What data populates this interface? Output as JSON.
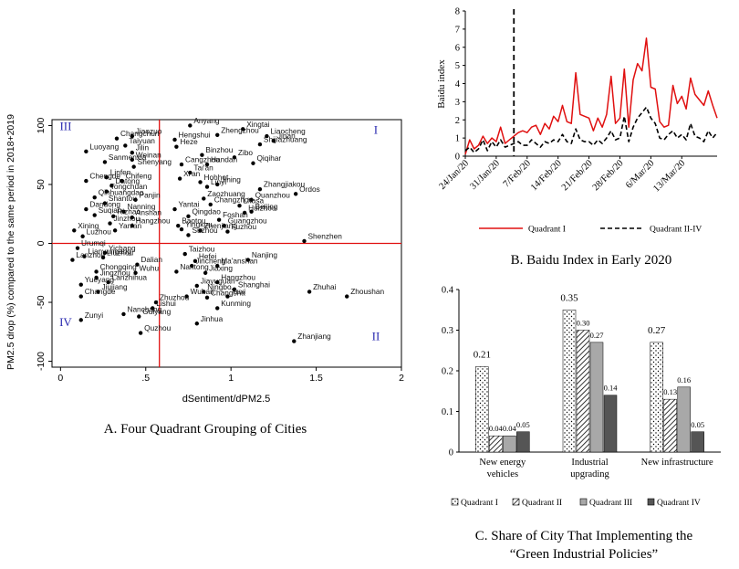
{
  "chart_data": [
    {
      "type": "scatter",
      "caption": "A. Four Quadrant Grouping of Cities",
      "xlabel": "dSentiment/dPM2.5",
      "ylabel": "PM2.5 drop (%) compared to the same period in 2018+2019",
      "xlim": [
        -0.05,
        2.0
      ],
      "ylim": [
        -105,
        105
      ],
      "xticks": [
        {
          "v": 0,
          "t": "0"
        },
        {
          "v": 0.5,
          "t": ".5"
        },
        {
          "v": 1,
          "t": "1"
        },
        {
          "v": 1.5,
          "t": "1.5"
        },
        {
          "v": 2,
          "t": "2"
        }
      ],
      "yticks": [
        {
          "v": 100,
          "t": "100"
        },
        {
          "v": 50,
          "t": "50"
        },
        {
          "v": 0,
          "t": "0"
        },
        {
          "v": -50,
          "t": "-50"
        },
        {
          "v": -100,
          "t": "-100"
        }
      ],
      "ref_lines": {
        "x": 0.58,
        "y": 0
      },
      "quadrant_labels": [
        {
          "text": "I",
          "x": 1.85,
          "y": 93
        },
        {
          "text": "II",
          "x": 1.85,
          "y": -82
        },
        {
          "text": "III",
          "x": 0.03,
          "y": 96
        },
        {
          "text": "IV",
          "x": 0.03,
          "y": -70
        }
      ],
      "points": [
        {
          "x": 0.76,
          "y": 100,
          "label": "Anyang"
        },
        {
          "x": 1.07,
          "y": 97,
          "label": "Xingtai"
        },
        {
          "x": 0.42,
          "y": 91,
          "label": "Jiaozuo"
        },
        {
          "x": 0.92,
          "y": 92,
          "label": "Zhengzhou"
        },
        {
          "x": 1.21,
          "y": 91,
          "label": "Liaocheng"
        },
        {
          "x": 0.33,
          "y": 89,
          "label": "Changchun"
        },
        {
          "x": 0.67,
          "y": 88,
          "label": "Hengshui"
        },
        {
          "x": 1.25,
          "y": 87,
          "label": "Jinan"
        },
        {
          "x": 0.38,
          "y": 83,
          "label": "Taiyuan"
        },
        {
          "x": 0.68,
          "y": 82,
          "label": "Heze"
        },
        {
          "x": 1.17,
          "y": 84,
          "label": "Shijiazhuang"
        },
        {
          "x": 0.15,
          "y": 78,
          "label": "Luoyang"
        },
        {
          "x": 0.42,
          "y": 77,
          "label": "Jilin"
        },
        {
          "x": 0.83,
          "y": 75,
          "label": "Binzhou"
        },
        {
          "x": 1.02,
          "y": 73,
          "label": "Zibo"
        },
        {
          "x": 0.26,
          "y": 69,
          "label": "Sanmenxia"
        },
        {
          "x": 0.42,
          "y": 71,
          "label": "Weinan"
        },
        {
          "x": 0.71,
          "y": 67,
          "label": "Cangzhou"
        },
        {
          "x": 0.86,
          "y": 67,
          "label": "Handan"
        },
        {
          "x": 1.13,
          "y": 68,
          "label": "Qiqihar"
        },
        {
          "x": 0.43,
          "y": 65,
          "label": "Shenyang"
        },
        {
          "x": 0.76,
          "y": 60,
          "label": "Tai'an"
        },
        {
          "x": 0.27,
          "y": 56,
          "label": "Linfen"
        },
        {
          "x": 0.7,
          "y": 55,
          "label": "Xi'an"
        },
        {
          "x": 0.15,
          "y": 53,
          "label": "Chengde"
        },
        {
          "x": 0.36,
          "y": 53,
          "label": "Chifeng"
        },
        {
          "x": 0.82,
          "y": 52,
          "label": "Hohhot"
        },
        {
          "x": 0.3,
          "y": 49,
          "label": "Datong"
        },
        {
          "x": 0.86,
          "y": 48,
          "label": "Linyi"
        },
        {
          "x": 0.92,
          "y": 50,
          "label": "Jining"
        },
        {
          "x": 1.17,
          "y": 46,
          "label": "Zhangjiakou"
        },
        {
          "x": 0.27,
          "y": 44,
          "label": "Tongchuan"
        },
        {
          "x": 1.38,
          "y": 42,
          "label": "Ordos"
        },
        {
          "x": 0.2,
          "y": 39,
          "label": "Qinhuangdao"
        },
        {
          "x": 0.44,
          "y": 37,
          "label": "Panjin"
        },
        {
          "x": 0.84,
          "y": 38,
          "label": "Zaozhuang"
        },
        {
          "x": 1.12,
          "y": 37,
          "label": "Quanzhou"
        },
        {
          "x": 0.26,
          "y": 34,
          "label": "Shantou"
        },
        {
          "x": 0.88,
          "y": 33,
          "label": "Changzhou"
        },
        {
          "x": 1.05,
          "y": 32,
          "label": "Lhasa"
        },
        {
          "x": 0.15,
          "y": 29,
          "label": "Dandong"
        },
        {
          "x": 0.37,
          "y": 27,
          "label": "Nanning"
        },
        {
          "x": 0.67,
          "y": 29,
          "label": "Yantai"
        },
        {
          "x": 1.08,
          "y": 26,
          "label": "Huizhou"
        },
        {
          "x": 1.12,
          "y": 27,
          "label": "Beijing"
        },
        {
          "x": 0.2,
          "y": 24,
          "label": "Suqian"
        },
        {
          "x": 0.31,
          "y": 23,
          "label": "Rizhao"
        },
        {
          "x": 0.42,
          "y": 22,
          "label": "Anshan"
        },
        {
          "x": 0.75,
          "y": 23,
          "label": "Qingdao"
        },
        {
          "x": 0.93,
          "y": 20,
          "label": "Foshan"
        },
        {
          "x": 0.29,
          "y": 17,
          "label": "Jinzhou"
        },
        {
          "x": 0.42,
          "y": 15,
          "label": "Hangzhou"
        },
        {
          "x": 0.69,
          "y": 15,
          "label": "Baotou"
        },
        {
          "x": 0.96,
          "y": 15,
          "label": "Guangzhou"
        },
        {
          "x": 0.08,
          "y": 11,
          "label": "Xining"
        },
        {
          "x": 0.32,
          "y": 11,
          "label": "Yan'an"
        },
        {
          "x": 0.71,
          "y": 12,
          "label": "Yingkou"
        },
        {
          "x": 0.82,
          "y": 11,
          "label": "Zhenjiang"
        },
        {
          "x": 0.98,
          "y": 10,
          "label": "Fuzhou"
        },
        {
          "x": 0.13,
          "y": 6,
          "label": "Luzhou"
        },
        {
          "x": 0.75,
          "y": 7,
          "label": "Suzhou"
        },
        {
          "x": 1.43,
          "y": 2,
          "label": "Shenzhen"
        },
        {
          "x": 0.1,
          "y": -4,
          "label": "Urumqi"
        },
        {
          "x": 0.26,
          "y": -8,
          "label": "Yichang"
        },
        {
          "x": 0.73,
          "y": -9,
          "label": "Taizhou"
        },
        {
          "x": 0.14,
          "y": -11,
          "label": "Lianyungang"
        },
        {
          "x": 1.1,
          "y": -14,
          "label": "Nanjing"
        },
        {
          "x": 0.07,
          "y": -14,
          "label": "Lanzhou"
        },
        {
          "x": 0.25,
          "y": -12,
          "label": "Liuzhou"
        },
        {
          "x": 0.79,
          "y": -15,
          "label": "Hefei"
        },
        {
          "x": 0.45,
          "y": -18,
          "label": "Dalian"
        },
        {
          "x": 0.77,
          "y": -19,
          "label": "Jincheng"
        },
        {
          "x": 0.92,
          "y": -19,
          "label": "Ma'anshan"
        },
        {
          "x": 0.21,
          "y": -24,
          "label": "Chongqing"
        },
        {
          "x": 0.44,
          "y": -25,
          "label": "Wuhu"
        },
        {
          "x": 0.68,
          "y": -24,
          "label": "Nantong"
        },
        {
          "x": 0.85,
          "y": -25,
          "label": "Jiaxing"
        },
        {
          "x": 0.21,
          "y": -29,
          "label": "Jingzhou"
        },
        {
          "x": 0.28,
          "y": -33,
          "label": "Lanzhihua"
        },
        {
          "x": 0.12,
          "y": -35,
          "label": "Yueyang"
        },
        {
          "x": 0.8,
          "y": -36,
          "label": "Jiayuguan"
        },
        {
          "x": 0.92,
          "y": -33,
          "label": "Hangzhou"
        },
        {
          "x": 1.02,
          "y": -39,
          "label": "Shanghai"
        },
        {
          "x": 0.22,
          "y": -41,
          "label": "Jiujiang"
        },
        {
          "x": 0.84,
          "y": -41,
          "label": "Ningbo"
        },
        {
          "x": 1.46,
          "y": -41,
          "label": "Zhuhai"
        },
        {
          "x": 0.12,
          "y": -45,
          "label": "Changde"
        },
        {
          "x": 0.98,
          "y": -45,
          "label": "Yuxi"
        },
        {
          "x": 1.68,
          "y": -45,
          "label": "Zhoushan"
        },
        {
          "x": 0.74,
          "y": -45,
          "label": "Wuhan"
        },
        {
          "x": 0.86,
          "y": -46,
          "label": "Changsha"
        },
        {
          "x": 0.56,
          "y": -50,
          "label": "Zhuzhou"
        },
        {
          "x": 0.54,
          "y": -55,
          "label": "Lishui"
        },
        {
          "x": 0.92,
          "y": -55,
          "label": "Kunming"
        },
        {
          "x": 0.37,
          "y": -60,
          "label": "Nanchang"
        },
        {
          "x": 0.46,
          "y": -62,
          "label": "Guiyang"
        },
        {
          "x": 0.12,
          "y": -65,
          "label": "Zunyi"
        },
        {
          "x": 0.8,
          "y": -68,
          "label": "Jinhua"
        },
        {
          "x": 0.47,
          "y": -76,
          "label": "Quzhou"
        },
        {
          "x": 1.37,
          "y": -83,
          "label": "Zhanjiang"
        }
      ]
    },
    {
      "type": "line",
      "caption": "B. Baidu Index in Early 2020",
      "ylabel": "Baidu index",
      "ylim": [
        0,
        8
      ],
      "yticks": [
        "0",
        "1",
        "2",
        "3",
        "4",
        "5",
        "6",
        "7",
        "8"
      ],
      "date_ticks": [
        {
          "i": 0,
          "t": "24/Jan/20"
        },
        {
          "i": 7,
          "t": "31/Jan/20"
        },
        {
          "i": 14,
          "t": "7/Feb/20"
        },
        {
          "i": 21,
          "t": "14/Feb/20"
        },
        {
          "i": 28,
          "t": "21/Feb/20"
        },
        {
          "i": 35,
          "t": "28/Feb/20"
        },
        {
          "i": 42,
          "t": "6/Mar/20"
        },
        {
          "i": 49,
          "t": "13/Mar/20"
        }
      ],
      "dates": [
        "24/Jan/20",
        "25/Jan/20",
        "26/Jan/20",
        "27/Jan/20",
        "28/Jan/20",
        "29/Jan/20",
        "30/Jan/20",
        "31/Jan/20",
        "1/Feb/20",
        "2/Feb/20",
        "3/Feb/20",
        "4/Feb/20",
        "5/Feb/20",
        "6/Feb/20",
        "7/Feb/20",
        "8/Feb/20",
        "9/Feb/20",
        "10/Feb/20",
        "11/Feb/20",
        "12/Feb/20",
        "13/Feb/20",
        "14/Feb/20",
        "15/Feb/20",
        "16/Feb/20",
        "17/Feb/20",
        "18/Feb/20",
        "19/Feb/20",
        "20/Feb/20",
        "21/Feb/20",
        "22/Feb/20",
        "23/Feb/20",
        "24/Feb/20",
        "25/Feb/20",
        "26/Feb/20",
        "27/Feb/20",
        "28/Feb/20",
        "29/Feb/20",
        "1/Mar/20",
        "2/Mar/20",
        "3/Mar/20",
        "4/Mar/20",
        "5/Mar/20",
        "6/Mar/20",
        "7/Mar/20",
        "8/Mar/20",
        "9/Mar/20",
        "10/Mar/20",
        "11/Mar/20",
        "12/Mar/20",
        "13/Mar/20",
        "14/Mar/20",
        "15/Mar/20",
        "16/Mar/20",
        "17/Mar/20",
        "18/Mar/20",
        "19/Mar/20",
        "20/Mar/20",
        "21/Mar/20"
      ],
      "vline_date": "4/Feb/20",
      "series": [
        {
          "name": "Quadrant I",
          "color": "#e01010",
          "dash": false,
          "values": [
            0.1,
            0.9,
            0.4,
            0.6,
            1.1,
            0.7,
            1.0,
            0.8,
            1.6,
            0.7,
            0.9,
            1.1,
            1.3,
            1.4,
            1.3,
            1.6,
            1.7,
            1.2,
            1.8,
            1.5,
            2.2,
            1.9,
            2.8,
            1.9,
            1.8,
            4.6,
            2.3,
            2.2,
            2.1,
            1.4,
            2.1,
            1.6,
            2.3,
            4.4,
            1.8,
            2.1,
            4.8,
            1.6,
            4.2,
            5.1,
            4.7,
            6.5,
            3.8,
            3.7,
            1.9,
            1.6,
            1.7,
            3.9,
            2.9,
            3.3,
            2.6,
            4.3,
            3.4,
            3.1,
            2.8,
            3.6,
            2.8,
            2.1
          ]
        },
        {
          "name": "Quadrant II-IV",
          "color": "#000000",
          "dash": true,
          "values": [
            0.3,
            0.5,
            0.2,
            0.4,
            0.9,
            0.3,
            0.8,
            0.5,
            0.9,
            0.5,
            0.6,
            0.7,
            0.8,
            0.6,
            0.6,
            0.9,
            0.7,
            0.5,
            0.8,
            0.7,
            0.9,
            0.8,
            1.2,
            0.8,
            0.7,
            1.5,
            0.9,
            0.8,
            0.8,
            0.6,
            0.9,
            0.7,
            1.0,
            1.4,
            0.9,
            1.0,
            2.2,
            0.8,
            1.6,
            2.1,
            2.4,
            2.7,
            2.1,
            1.8,
            1.0,
            0.9,
            1.2,
            1.4,
            1.0,
            1.2,
            0.9,
            1.8,
            1.1,
            1.0,
            0.8,
            1.4,
            1.0,
            1.3
          ]
        }
      ]
    },
    {
      "type": "bar",
      "caption_line1": "C. Share of City That Implementing the",
      "caption_line2": "“Green Industrial Policies”",
      "ylim": [
        0,
        0.4
      ],
      "yticks": [
        "0",
        "0.1",
        "0.2",
        "0.3",
        "0.4"
      ],
      "categories": [
        {
          "line1": "New energy",
          "line2": "vehicles"
        },
        {
          "line1": "Industrial",
          "line2": "upgrading"
        },
        {
          "line1": "New infrastructure",
          "line2": ""
        }
      ],
      "series": [
        {
          "name": "Quadrant I",
          "fill": "dots",
          "values": [
            0.21,
            0.35,
            0.27
          ],
          "labels": [
            "0.21",
            "0.35",
            "0.27"
          ]
        },
        {
          "name": "Quadrant II",
          "fill": "hatch",
          "values": [
            0.04,
            0.3,
            0.13
          ],
          "labels": [
            "0.04",
            "0.30",
            "0.13"
          ]
        },
        {
          "name": "Quadrant III",
          "fill": "#a8a8a8",
          "values": [
            0.04,
            0.27,
            0.16
          ],
          "labels": [
            "0.04",
            "0.27",
            "0.16"
          ]
        },
        {
          "name": "Quadrant IV",
          "fill": "#555555",
          "values": [
            0.05,
            0.14,
            0.05
          ],
          "labels": [
            "0.05",
            "0.14",
            "0.05"
          ]
        }
      ]
    }
  ]
}
